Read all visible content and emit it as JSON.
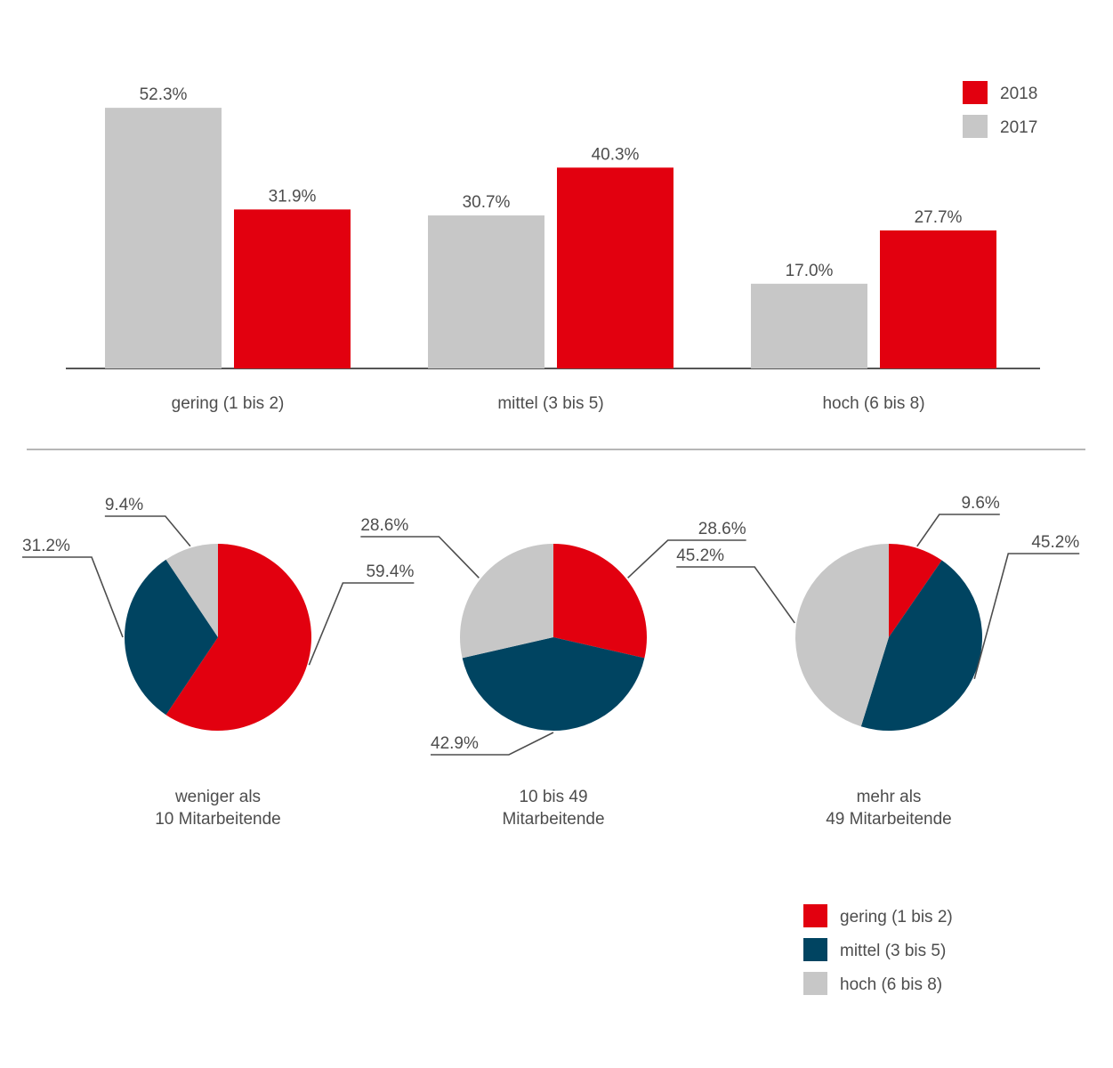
{
  "colors": {
    "red": "#e2000f",
    "blue": "#004461",
    "grey": "#c7c7c7",
    "text": "#4d4d4d",
    "axis": "#555555",
    "divider": "#9d9d9d"
  },
  "chart_data": [
    {
      "type": "bar",
      "title": "",
      "xlabel": "",
      "ylabel": "",
      "ylim": [
        0,
        60
      ],
      "grid": false,
      "legend_position": "top-right",
      "categories": [
        "gering (1 bis 2)",
        "mittel (3 bis 5)",
        "hoch (6 bis 8)"
      ],
      "series": [
        {
          "name": "2017",
          "color": "#c7c7c7",
          "values": [
            52.3,
            30.7,
            17.0
          ],
          "labels": [
            "52.3%",
            "30.7%",
            "17.0%"
          ]
        },
        {
          "name": "2018",
          "color": "#e2000f",
          "values": [
            31.9,
            40.3,
            27.7
          ],
          "labels": [
            "31.9%",
            "40.3%",
            "27.7%"
          ]
        }
      ],
      "legend": [
        {
          "label": "2018",
          "color": "#e2000f"
        },
        {
          "label": "2017",
          "color": "#c7c7c7"
        }
      ]
    },
    {
      "type": "pie",
      "caption": [
        "weniger als",
        "10 Mitarbeitende"
      ],
      "slices": [
        {
          "category": "gering (1 bis 2)",
          "value": 59.4,
          "label": "59.4%",
          "color": "#e2000f"
        },
        {
          "category": "mittel (3 bis 5)",
          "value": 31.2,
          "label": "31.2%",
          "color": "#004461"
        },
        {
          "category": "hoch (6 bis 8)",
          "value": 9.4,
          "label": "9.4%",
          "color": "#c7c7c7"
        }
      ]
    },
    {
      "type": "pie",
      "caption": [
        "10 bis 49",
        "Mitarbeitende"
      ],
      "slices": [
        {
          "category": "gering (1 bis 2)",
          "value": 28.6,
          "label": "28.6%",
          "color": "#e2000f"
        },
        {
          "category": "mittel (3 bis 5)",
          "value": 42.9,
          "label": "42.9%",
          "color": "#004461"
        },
        {
          "category": "hoch (6 bis 8)",
          "value": 28.6,
          "label": "28.6%",
          "color": "#c7c7c7"
        }
      ]
    },
    {
      "type": "pie",
      "caption": [
        "mehr als",
        "49 Mitarbeitende"
      ],
      "slices": [
        {
          "category": "gering (1 bis 2)",
          "value": 9.6,
          "label": "9.6%",
          "color": "#e2000f"
        },
        {
          "category": "mittel (3 bis 5)",
          "value": 45.2,
          "label": "45.2%",
          "color": "#004461"
        },
        {
          "category": "hoch (6 bis 8)",
          "value": 45.2,
          "label": "45.2%",
          "color": "#c7c7c7"
        }
      ]
    }
  ],
  "pie_legend": [
    {
      "label": "gering (1 bis 2)",
      "color": "#e2000f"
    },
    {
      "label": "mittel (3 bis 5)",
      "color": "#004461"
    },
    {
      "label": "hoch (6 bis 8)",
      "color": "#c7c7c7"
    }
  ]
}
